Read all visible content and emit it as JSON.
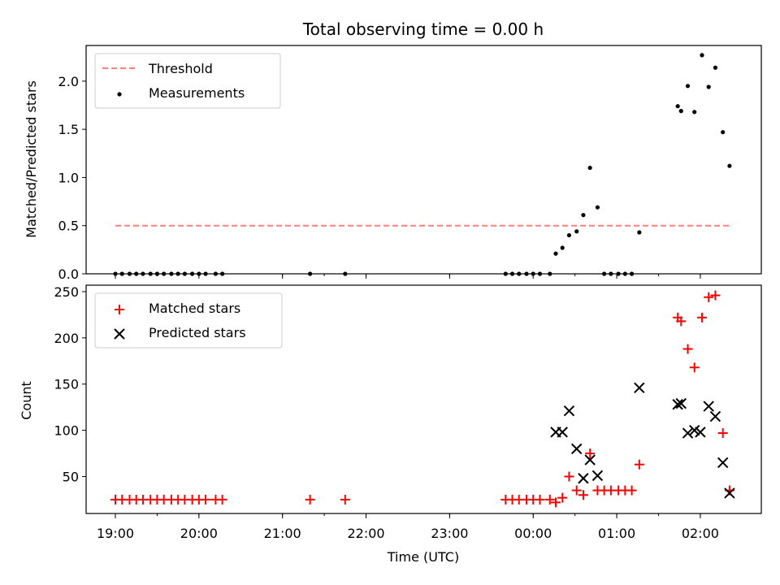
{
  "chart_data": {
    "title": "Total observing time = 0.00 h",
    "xlabel": "Time (UTC)",
    "x_ticks": [
      "19:00",
      "20:00",
      "21:00",
      "22:00",
      "23:00",
      "00:00",
      "01:00",
      "02:00"
    ],
    "x_minor_ticks": [
      "19:00",
      "19:30",
      "20:00",
      "21:00",
      "21:30",
      "22:00",
      "23:00",
      "00:00",
      "00:30",
      "01:00",
      "01:30",
      "02:00"
    ],
    "x_range_hours": [
      18.65,
      26.73
    ],
    "panels": [
      {
        "type": "scatter",
        "ylabel": "Matched/Predicted stars",
        "ylim": [
          0,
          2.37
        ],
        "yticks": [
          0.0,
          0.5,
          1.0,
          1.5,
          2.0
        ],
        "ytick_labels": [
          "0.0",
          "0.5",
          "1.0",
          "1.5",
          "2.0"
        ],
        "legend_position": "upper-left",
        "threshold": {
          "name": "Threshold",
          "value": 0.5,
          "x_start": 19.0,
          "x_end": 26.37,
          "color": "#ff7f7f"
        },
        "series": [
          {
            "name": "Measurements",
            "color": "#000000",
            "x": [
              19.0,
              19.08,
              19.17,
              19.25,
              19.33,
              19.42,
              19.5,
              19.58,
              19.67,
              19.75,
              19.83,
              19.92,
              20.0,
              20.08,
              20.2,
              20.28,
              21.33,
              21.75,
              23.67,
              23.75,
              23.83,
              23.92,
              24.0,
              24.08,
              24.2,
              24.27,
              24.35,
              24.43,
              24.52,
              24.6,
              24.68,
              24.77,
              24.85,
              24.93,
              25.02,
              25.1,
              25.18,
              25.27,
              25.73,
              25.77,
              25.85,
              25.93,
              26.02,
              26.1,
              26.18,
              26.27,
              26.35
            ],
            "y": [
              0,
              0,
              0,
              0,
              0,
              0,
              0,
              0,
              0,
              0,
              0,
              0,
              0,
              0,
              0,
              0,
              0,
              0,
              0,
              0,
              0,
              0,
              0,
              0,
              0,
              0.21,
              0.27,
              0.4,
              0.44,
              0.61,
              1.1,
              0.69,
              0,
              0,
              0,
              0,
              0,
              0.43,
              1.74,
              1.69,
              1.95,
              1.68,
              2.27,
              1.94,
              2.14,
              1.47,
              1.12
            ]
          }
        ]
      },
      {
        "type": "scatter",
        "ylabel": "Count",
        "ylim": [
          10,
          257
        ],
        "yticks": [
          50,
          100,
          150,
          200,
          250
        ],
        "ytick_labels": [
          "50",
          "100",
          "150",
          "200",
          "250"
        ],
        "legend_position": "upper-left",
        "series": [
          {
            "name": "Matched stars",
            "marker": "plus",
            "color": "#ff0000",
            "x": [
              19.0,
              19.08,
              19.17,
              19.25,
              19.33,
              19.42,
              19.5,
              19.58,
              19.67,
              19.75,
              19.83,
              19.92,
              20.0,
              20.08,
              20.2,
              20.28,
              21.33,
              21.75,
              23.67,
              23.75,
              23.83,
              23.92,
              24.0,
              24.08,
              24.2,
              24.27,
              24.35,
              24.43,
              24.52,
              24.6,
              24.68,
              24.77,
              24.85,
              24.93,
              25.02,
              25.1,
              25.18,
              25.27,
              25.73,
              25.77,
              25.85,
              25.93,
              26.02,
              26.1,
              26.18,
              26.27,
              26.35
            ],
            "y": [
              25,
              25,
              25,
              25,
              25,
              25,
              25,
              25,
              25,
              25,
              25,
              25,
              25,
              25,
              25,
              25,
              25,
              25,
              25,
              25,
              25,
              25,
              25,
              25,
              25,
              22,
              27,
              50,
              35,
              30,
              75,
              35,
              35,
              35,
              35,
              35,
              35,
              63,
              222,
              218,
              188,
              168,
              222,
              244,
              246,
              97,
              35
            ]
          },
          {
            "name": "Predicted stars",
            "marker": "x",
            "color": "#000000",
            "x": [
              24.27,
              24.35,
              24.43,
              24.52,
              24.6,
              24.68,
              24.77,
              25.27,
              25.73,
              25.77,
              25.85,
              25.93,
              26.0,
              26.1,
              26.18,
              26.27,
              26.35
            ],
            "y": [
              98,
              98,
              121,
              80,
              48,
              68,
              51,
              146,
              128,
              129,
              97,
              100,
              98,
              126,
              115,
              65,
              32
            ]
          }
        ]
      }
    ]
  }
}
